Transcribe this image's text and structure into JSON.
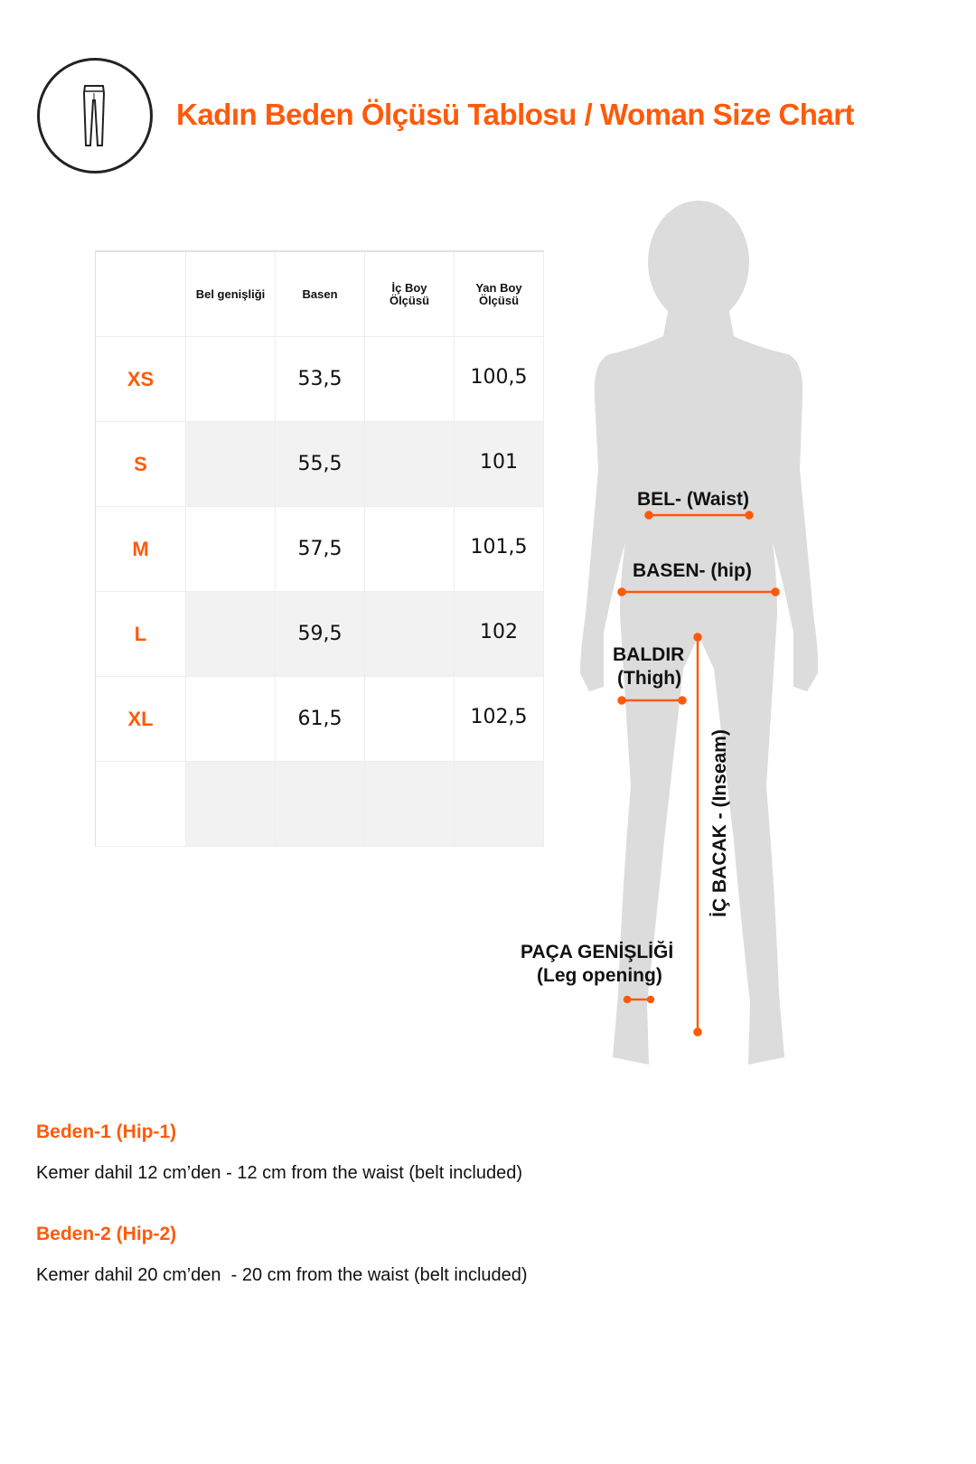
{
  "header": {
    "title": "Kadın Beden Ölçüsü Tablosu / Woman Size Chart",
    "icon": "leggings-icon"
  },
  "table": {
    "columns": [
      "",
      "Bel genişliği",
      "Basen",
      "İç Boy Ölçüsü",
      "Yan Boy Ölçüsü"
    ],
    "rows": [
      {
        "size": "XS",
        "bel": "",
        "basen": "53,5",
        "ic_boy": "",
        "yan_boy": "100,5"
      },
      {
        "size": "S",
        "bel": "",
        "basen": "55,5",
        "ic_boy": "",
        "yan_boy": "101"
      },
      {
        "size": "M",
        "bel": "",
        "basen": "57,5",
        "ic_boy": "",
        "yan_boy": "101,5"
      },
      {
        "size": "L",
        "bel": "",
        "basen": "59,5",
        "ic_boy": "",
        "yan_boy": "102"
      },
      {
        "size": "XL",
        "bel": "",
        "basen": "61,5",
        "ic_boy": "",
        "yan_boy": "102,5"
      },
      {
        "size": "",
        "bel": "",
        "basen": "",
        "ic_boy": "",
        "yan_boy": ""
      }
    ]
  },
  "figure": {
    "waist": "BEL- (Waist)",
    "hip": "BASEN- (hip)",
    "thigh_1": "BALDIR",
    "thigh_2": "(Thigh)",
    "inseam": "İÇ BACAK - (Inseam)",
    "leg_opening_1": "PAÇA GENİŞLİĞİ",
    "leg_opening_2": "(Leg opening)",
    "accent": "#ff5a0a",
    "silhouette": "#dcdcdc"
  },
  "notes": [
    {
      "heading": "Beden-1 (Hip-1)",
      "text": "Kemer dahil 12 cm’den - 12 cm from the waist (belt included)"
    },
    {
      "heading": "Beden-2 (Hip-2)",
      "text": "Kemer dahil 20 cm’den  - 20 cm from the waist (belt included)"
    }
  ]
}
